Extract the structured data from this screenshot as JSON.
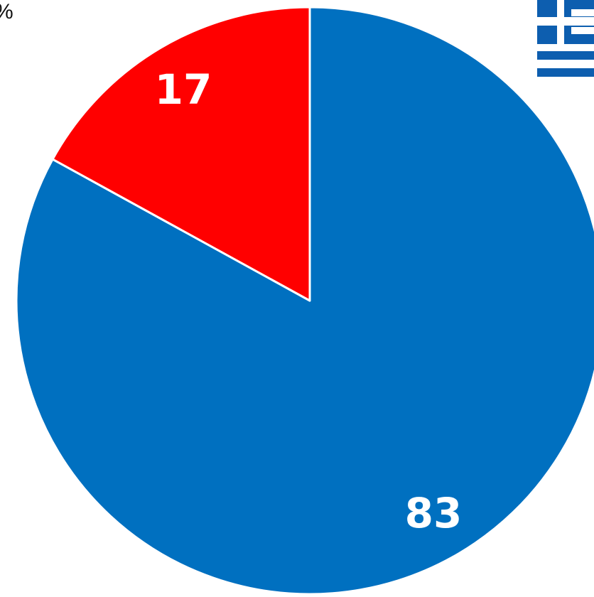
{
  "unit_symbol": "%",
  "flag_icon": "greek-flag-icon",
  "colors": {
    "blue": "#0070c0",
    "red": "#ff0000",
    "flag_blue": "#0d5eaf",
    "background": "#ffffff"
  },
  "chart_data": {
    "type": "pie",
    "title": "",
    "unit": "%",
    "start_angle_deg": 0,
    "direction": "counterclockwise",
    "slices": [
      {
        "label": "83",
        "value": 83,
        "color": "#0070c0"
      },
      {
        "label": "17",
        "value": 17,
        "color": "#ff0000"
      }
    ]
  }
}
